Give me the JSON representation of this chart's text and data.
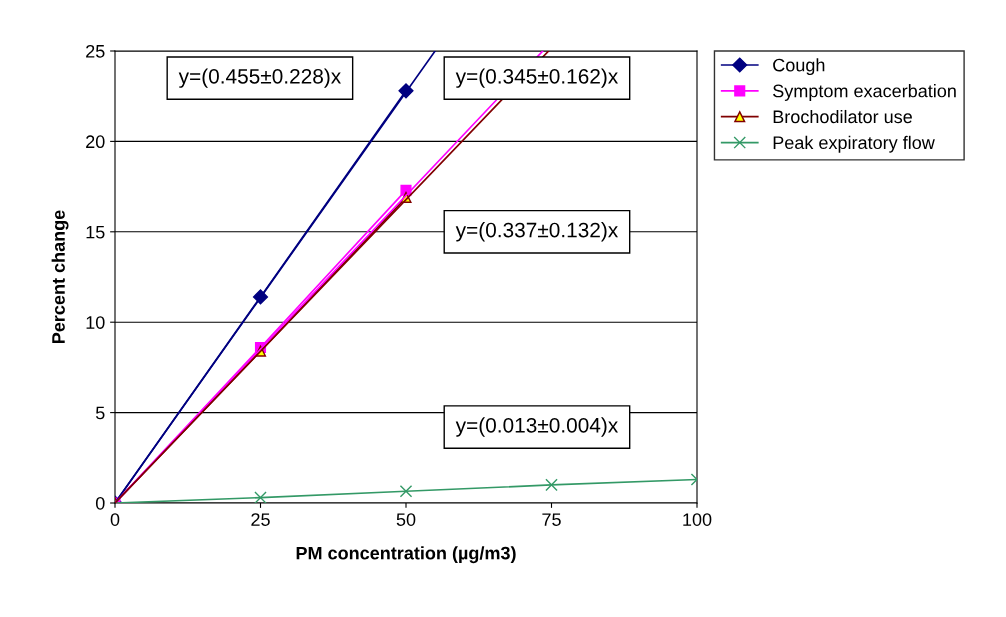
{
  "chart_data": {
    "type": "line",
    "xlabel": "PM concentration (µg/m3)",
    "ylabel": "Percent change",
    "xlim": [
      0,
      100
    ],
    "xticks": [
      0,
      25,
      50,
      75,
      100
    ],
    "ylim": [
      0,
      25
    ],
    "yticks": [
      0,
      5,
      10,
      15,
      20,
      25
    ],
    "grid": "y",
    "legend": "top right",
    "series": [
      {
        "name": "Cough",
        "color": "#000080",
        "marker": "diamond",
        "x": [
          0,
          25,
          50
        ],
        "values": [
          0,
          11.4,
          22.8
        ]
      },
      {
        "name": "Symptom exacerbation",
        "color": "#ff00ff",
        "marker": "square",
        "x": [
          0,
          25,
          50
        ],
        "values": [
          0,
          8.6,
          17.3
        ]
      },
      {
        "name": "Brochodilator use",
        "color": "#800000",
        "marker": "triangle",
        "x": [
          0,
          25,
          50
        ],
        "values": [
          0,
          8.4,
          16.9
        ]
      },
      {
        "name": "Peak expiratory flow",
        "color": "#339966",
        "marker": "cross",
        "x": [
          0,
          25,
          50,
          75,
          100
        ],
        "values": [
          0,
          0.3,
          0.65,
          1.0,
          1.3
        ]
      },
      {
        "color": "#000080",
        "marker": "none",
        "x": [
          0,
          55
        ],
        "values": [
          0,
          25
        ]
      },
      {
        "color": "#ff00ff",
        "marker": "none",
        "x": [
          0,
          73.5
        ],
        "values": [
          0,
          25
        ]
      },
      {
        "color": "#800000",
        "marker": "none",
        "x": [
          0,
          74.5
        ],
        "values": [
          0,
          25
        ]
      }
    ],
    "annotations": [
      "y=(0.455±0.228)x",
      "y=(0.345±0.162)x",
      "y=(0.337±0.132)x",
      "y=(0.013±0.004)x"
    ]
  }
}
